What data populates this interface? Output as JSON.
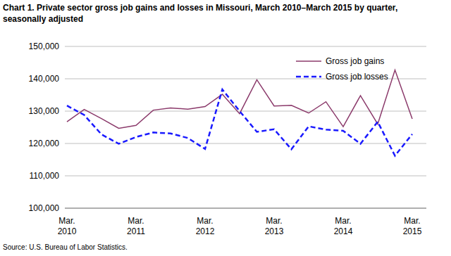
{
  "chart_data": {
    "type": "line",
    "title": "Chart 1. Private sector gross  job gains and losses  in Missouri, March 2010–March 2015 by quarter, seasonally adjusted",
    "source": "Source: U.S. Bureau of Labor Statistics.",
    "categories": [
      "Mar. 2010",
      null,
      null,
      null,
      "Mar. 2011",
      null,
      null,
      null,
      "Mar. 2012",
      null,
      null,
      null,
      "Mar. 2013",
      null,
      null,
      null,
      "Mar. 2014",
      null,
      null,
      null,
      "Mar. 2015"
    ],
    "series": [
      {
        "name": "Gross job gains",
        "color": "#8b3a6b",
        "line_style": "solid",
        "values": [
          126700,
          130500,
          127700,
          124700,
          125600,
          130300,
          131000,
          130600,
          131400,
          135200,
          129200,
          139700,
          131600,
          131800,
          129400,
          132900,
          125200,
          134800,
          126000,
          142700,
          127600
        ]
      },
      {
        "name": "Gross job losses",
        "color": "#1a1aff",
        "line_style": "dashed",
        "values": [
          131700,
          128800,
          122800,
          119900,
          122000,
          123400,
          123100,
          121700,
          118300,
          136700,
          130000,
          123600,
          124400,
          118200,
          125300,
          124300,
          123900,
          119900,
          126700,
          116200,
          122900
        ]
      }
    ],
    "ylim": [
      100000,
      150000
    ],
    "yticks": [
      {
        "value": 100000,
        "label": "100,000"
      },
      {
        "value": 110000,
        "label": "110,000"
      },
      {
        "value": 120000,
        "label": "120,000"
      },
      {
        "value": 130000,
        "label": "130,000"
      },
      {
        "value": 140000,
        "label": "140,000"
      },
      {
        "value": 150000,
        "label": "150,000"
      }
    ],
    "grid": true,
    "legend": "upper right"
  }
}
